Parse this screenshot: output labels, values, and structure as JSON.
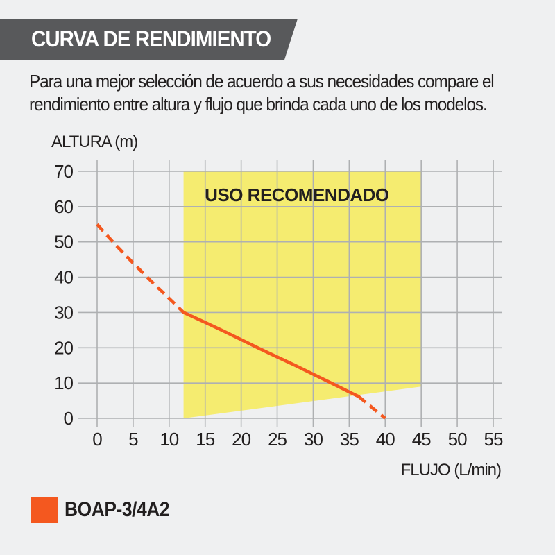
{
  "page": {
    "background": "#eff0f1",
    "text_color": "#221f1f"
  },
  "header": {
    "title": "CURVA DE RENDIMIENTO",
    "banner_color": "#58595b",
    "title_color": "#ffffff"
  },
  "description": {
    "lines": [
      "Para una mejor selección de acuerdo a sus necesidades compare el",
      "rendimiento entre altura y flujo que brinda cada uno de los modelos."
    ]
  },
  "chart_data": {
    "type": "line",
    "title": "",
    "xlabel": "FLUJO (L/min)",
    "ylabel": "ALTURA (m)",
    "xlim": [
      0,
      55
    ],
    "ylim": [
      0,
      70
    ],
    "xticks": [
      0,
      5,
      10,
      15,
      20,
      25,
      30,
      35,
      40,
      45,
      50,
      55
    ],
    "yticks": [
      0,
      10,
      20,
      30,
      40,
      50,
      60,
      70
    ],
    "grid": true,
    "grid_color": "#aeb0b2",
    "recommended_region": {
      "label": "USO RECOMENDADO",
      "color": "#f5ec70",
      "x_range": [
        12,
        45
      ],
      "y_top": 70,
      "bottom_edge": [
        [
          12,
          0
        ],
        [
          45,
          9
        ]
      ]
    },
    "series": [
      {
        "name": "BOAP-3/4A2",
        "color": "#f4581f",
        "segments": [
          {
            "style": "dashed",
            "points": [
              [
                0,
                55
              ],
              [
                2.5,
                49.3
              ],
              [
                5,
                44
              ],
              [
                7.5,
                38.9
              ],
              [
                10,
                34
              ],
              [
                12,
                30
              ]
            ]
          },
          {
            "style": "solid",
            "points": [
              [
                12,
                30
              ],
              [
                15,
                27.2
              ],
              [
                17.5,
                24.8
              ],
              [
                20,
                22.3
              ],
              [
                22.5,
                19.8
              ],
              [
                25,
                17.4
              ],
              [
                27.5,
                15
              ],
              [
                30,
                12.5
              ],
              [
                32.5,
                10
              ],
              [
                35,
                7.5
              ],
              [
                36.3,
                6.2
              ]
            ]
          },
          {
            "style": "dashed",
            "points": [
              [
                36.3,
                6.2
              ],
              [
                40,
                0
              ]
            ]
          }
        ]
      }
    ]
  },
  "legend": {
    "label": "BOAP-3/4A2",
    "swatch_color": "#f4581f"
  }
}
